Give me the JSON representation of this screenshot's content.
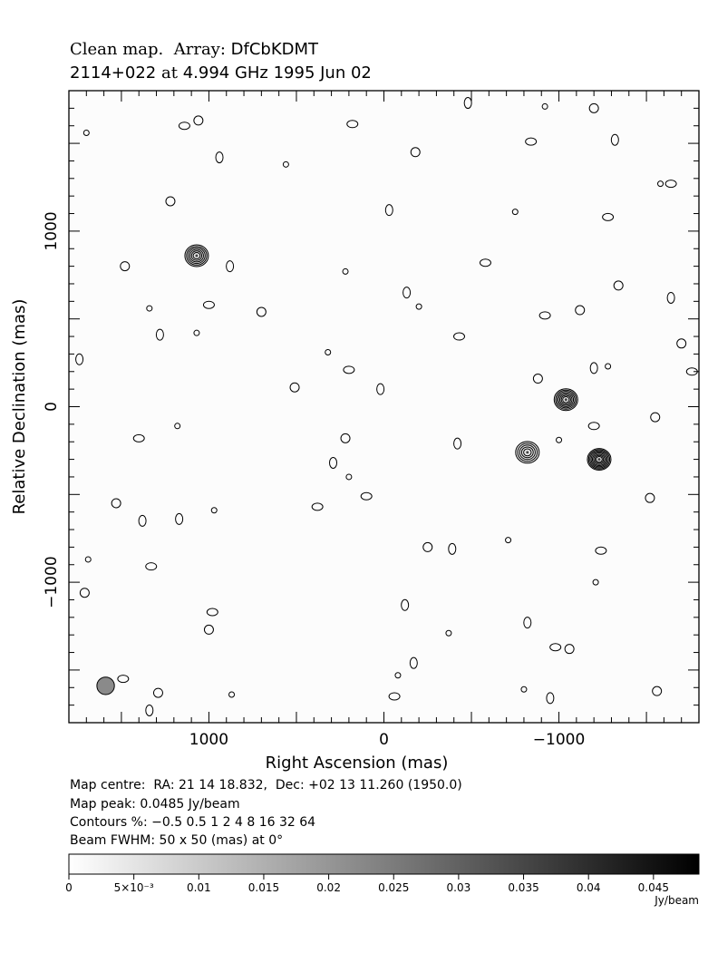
{
  "header": {
    "title_prefix": "Clean map.",
    "array_label": "Array:",
    "array_value": "DfCbKDMT",
    "source": "2114+022",
    "at_word": "at",
    "freq_date": "4.994 GHz 1995 Jun 02"
  },
  "chart_data": {
    "type": "contour",
    "xlabel": "Right Ascension  (mas)",
    "ylabel": "Relative Declination  (mas)",
    "xlim": [
      1800,
      -1800
    ],
    "ylim": [
      -1800,
      1800
    ],
    "x_ticks": [
      {
        "v": 1000,
        "label": "1000"
      },
      {
        "v": 0,
        "label": "0"
      },
      {
        "v": -1000,
        "label": "−1000"
      }
    ],
    "y_ticks": [
      {
        "v": 1000,
        "label": "1000"
      },
      {
        "v": 0,
        "label": "0"
      },
      {
        "v": -1000,
        "label": "−1000"
      }
    ],
    "sources": [
      {
        "x": 1070,
        "y": 860,
        "rings": 6
      },
      {
        "x": -1040,
        "y": 40,
        "rings": 7
      },
      {
        "x": -820,
        "y": -260,
        "rings": 5
      },
      {
        "x": -1230,
        "y": -300,
        "rings": 8
      }
    ],
    "noise_contours": [
      [
        1700,
        1560
      ],
      [
        1140,
        1600
      ],
      [
        1060,
        1630
      ],
      [
        940,
        1420
      ],
      [
        560,
        1380
      ],
      [
        180,
        1610
      ],
      [
        -180,
        1450
      ],
      [
        -480,
        1730
      ],
      [
        -920,
        1710
      ],
      [
        -840,
        1510
      ],
      [
        -1200,
        1700
      ],
      [
        -1320,
        1520
      ],
      [
        -1580,
        1270
      ],
      [
        -1640,
        1270
      ],
      [
        1220,
        1170
      ],
      [
        -30,
        1120
      ],
      [
        -750,
        1110
      ],
      [
        -1280,
        1080
      ],
      [
        1480,
        800
      ],
      [
        880,
        800
      ],
      [
        220,
        770
      ],
      [
        -580,
        820
      ],
      [
        -1340,
        690
      ],
      [
        -1640,
        620
      ],
      [
        1340,
        560
      ],
      [
        1000,
        580
      ],
      [
        700,
        540
      ],
      [
        -130,
        650
      ],
      [
        -200,
        570
      ],
      [
        -920,
        520
      ],
      [
        -1120,
        550
      ],
      [
        1280,
        410
      ],
      [
        1070,
        420
      ],
      [
        -430,
        400
      ],
      [
        -1700,
        360
      ],
      [
        1740,
        270
      ],
      [
        320,
        310
      ],
      [
        200,
        210
      ],
      [
        -880,
        160
      ],
      [
        -1200,
        220
      ],
      [
        -1280,
        230
      ],
      [
        -1760,
        200
      ],
      [
        510,
        110
      ],
      [
        20,
        100
      ],
      [
        1180,
        -110
      ],
      [
        1400,
        -180
      ],
      [
        220,
        -180
      ],
      [
        -420,
        -210
      ],
      [
        -1000,
        -190
      ],
      [
        -1200,
        -110
      ],
      [
        -1550,
        -60
      ],
      [
        290,
        -320
      ],
      [
        200,
        -400
      ],
      [
        100,
        -510
      ],
      [
        1530,
        -550
      ],
      [
        1380,
        -650
      ],
      [
        970,
        -590
      ],
      [
        380,
        -570
      ],
      [
        -1520,
        -520
      ],
      [
        1170,
        -640
      ],
      [
        1690,
        -870
      ],
      [
        1330,
        -910
      ],
      [
        -250,
        -800
      ],
      [
        -390,
        -810
      ],
      [
        -710,
        -760
      ],
      [
        -1240,
        -820
      ],
      [
        1710,
        -1060
      ],
      [
        -120,
        -1130
      ],
      [
        -1210,
        -1000
      ],
      [
        980,
        -1170
      ],
      [
        1000,
        -1270
      ],
      [
        -820,
        -1230
      ],
      [
        -370,
        -1290
      ],
      [
        -980,
        -1370
      ],
      [
        -1060,
        -1380
      ],
      [
        -170,
        -1460
      ],
      [
        -80,
        -1530
      ],
      [
        1490,
        -1550
      ],
      [
        1290,
        -1630
      ],
      [
        1340,
        -1730
      ],
      [
        -800,
        -1610
      ],
      [
        -60,
        -1650
      ],
      [
        -1560,
        -1620
      ],
      [
        -950,
        -1660
      ],
      [
        870,
        -1640
      ]
    ],
    "beam_mas": 50,
    "colorbar": {
      "min": 0,
      "max": 0.0485,
      "ticks": [
        {
          "v": 0,
          "label": "0"
        },
        {
          "v": 0.005,
          "label": "5×10⁻³"
        },
        {
          "v": 0.01,
          "label": "0.01"
        },
        {
          "v": 0.015,
          "label": "0.015"
        },
        {
          "v": 0.02,
          "label": "0.02"
        },
        {
          "v": 0.025,
          "label": "0.025"
        },
        {
          "v": 0.03,
          "label": "0.03"
        },
        {
          "v": 0.035,
          "label": "0.035"
        },
        {
          "v": 0.04,
          "label": "0.04"
        },
        {
          "v": 0.045,
          "label": "0.045"
        }
      ],
      "unit": "Jy/beam"
    }
  },
  "info": {
    "map_centre": "Map centre:  RA: 21 14 18.832,  Dec: +02 13 11.260 (1950.0)",
    "map_peak": "Map peak: 0.0485 Jy/beam",
    "contours": "Contours %: −0.5 0.5 1 2 4 8 16 32 64",
    "beam": "Beam FWHM: 50 x 50 (mas) at 0°"
  }
}
